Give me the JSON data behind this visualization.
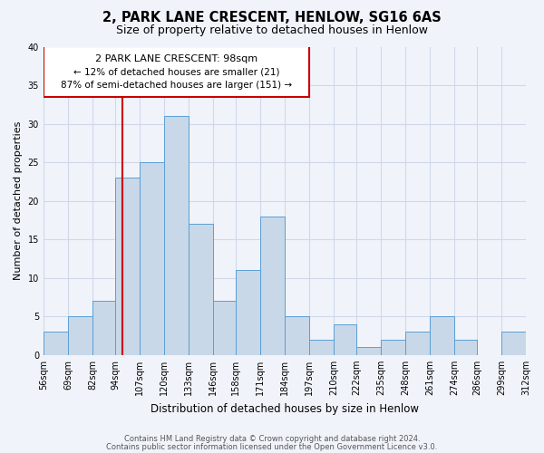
{
  "title": "2, PARK LANE CRESCENT, HENLOW, SG16 6AS",
  "subtitle": "Size of property relative to detached houses in Henlow",
  "xlabel": "Distribution of detached houses by size in Henlow",
  "ylabel": "Number of detached properties",
  "bin_labels": [
    "56sqm",
    "69sqm",
    "82sqm",
    "94sqm",
    "107sqm",
    "120sqm",
    "133sqm",
    "146sqm",
    "158sqm",
    "171sqm",
    "184sqm",
    "197sqm",
    "210sqm",
    "222sqm",
    "235sqm",
    "248sqm",
    "261sqm",
    "274sqm",
    "286sqm",
    "299sqm",
    "312sqm"
  ],
  "bin_edges": [
    56,
    69,
    82,
    94,
    107,
    120,
    133,
    146,
    158,
    171,
    184,
    197,
    210,
    222,
    235,
    248,
    261,
    274,
    286,
    299,
    312
  ],
  "counts": [
    3,
    5,
    7,
    23,
    25,
    31,
    17,
    7,
    11,
    18,
    5,
    2,
    4,
    1,
    2,
    3,
    5,
    2,
    0,
    3
  ],
  "bar_color": "#c8d8e8",
  "bar_edgecolor": "#5a9fd4",
  "property_size": 98,
  "vline_x": 98,
  "vline_color": "#cc0000",
  "annotation_title": "2 PARK LANE CRESCENT: 98sqm",
  "annotation_line1": "← 12% of detached houses are smaller (21)",
  "annotation_line2": "87% of semi-detached houses are larger (151) →",
  "annotation_box_color": "#ffffff",
  "annotation_box_edgecolor": "#cc0000",
  "ylim": [
    0,
    40
  ],
  "yticks": [
    0,
    5,
    10,
    15,
    20,
    25,
    30,
    35,
    40
  ],
  "grid_color": "#d0d8e8",
  "footer_line1": "Contains HM Land Registry data © Crown copyright and database right 2024.",
  "footer_line2": "Contains public sector information licensed under the Open Government Licence v3.0.",
  "bg_color": "#f0f4fa"
}
